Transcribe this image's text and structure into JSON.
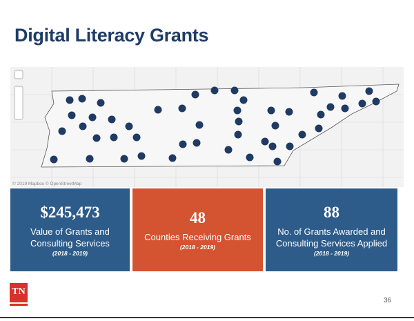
{
  "title": "Digital Literacy Grants",
  "map": {
    "attribution": "© 2019 Mapbox © OpenStreetMap"
  },
  "cards": [
    {
      "value": "$245,473",
      "label": "Value of Grants and Consulting Services",
      "period": "(2018 - 2019)"
    },
    {
      "value": "48",
      "label": "Counties Receiving Grants",
      "period": "(2018 - 2019)"
    },
    {
      "value": "88",
      "label": "No. of Grants Awarded and Consulting Services Applied",
      "period": "(2018 - 2019)"
    }
  ],
  "logo": "TN",
  "page_number": "36"
}
